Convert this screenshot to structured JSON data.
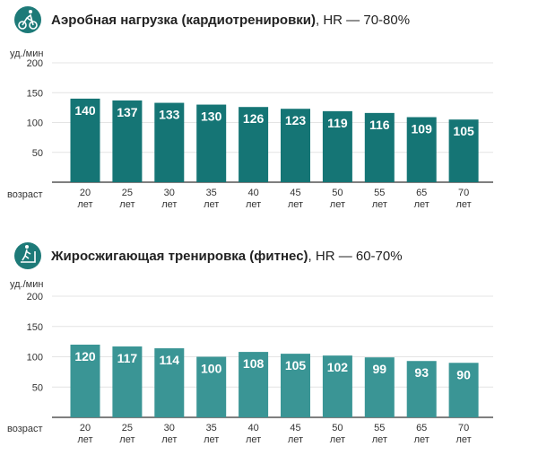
{
  "colors": {
    "aerobic_bar": "#157575",
    "fitness_bar": "#3a9595",
    "icon_bg": "#1d7a78",
    "grid": "#e4e4e4",
    "axis": "#333333"
  },
  "chart_data": [
    {
      "type": "bar",
      "icon": "cyclist-icon",
      "title": "Аэробная нагрузка (кардиотренировки)",
      "subtitle": ", HR — 70-80%",
      "ylabel": "уд./мин",
      "xlabel": "возраст",
      "ylim": [
        0,
        200
      ],
      "yticks": [
        "200",
        "150",
        "100",
        "50"
      ],
      "grid": true,
      "categories": [
        "20",
        "25",
        "30",
        "35",
        "40",
        "45",
        "50",
        "55",
        "65",
        "70"
      ],
      "category_unit": "лет",
      "values": [
        140,
        137,
        133,
        130,
        126,
        123,
        119,
        116,
        109,
        105
      ],
      "bar_color": "#157575"
    },
    {
      "type": "bar",
      "icon": "treadmill-icon",
      "title": "Жиросжигающая тренировка (фитнес)",
      "subtitle": ", HR — 60-70%",
      "ylabel": "уд./мин",
      "xlabel": "возраст",
      "ylim": [
        0,
        200
      ],
      "yticks": [
        "200",
        "150",
        "100",
        "50"
      ],
      "grid": true,
      "categories": [
        "20",
        "25",
        "30",
        "35",
        "40",
        "45",
        "50",
        "55",
        "65",
        "70"
      ],
      "category_unit": "лет",
      "values": [
        120,
        117,
        114,
        100,
        108,
        105,
        102,
        99,
        93,
        90
      ],
      "bar_color": "#3a9595"
    }
  ]
}
